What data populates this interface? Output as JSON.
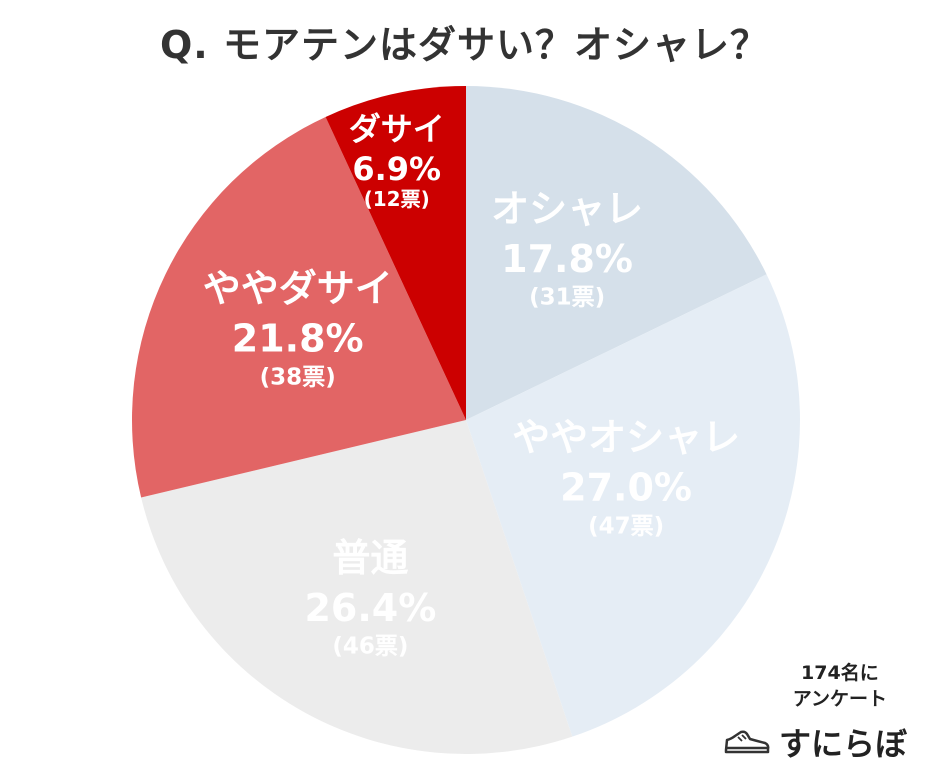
{
  "title": "Q. モアテンはダサい？オシャレ？",
  "respondents": {
    "line1": "174名に",
    "line2": "アンケート"
  },
  "brand": {
    "name": "すにらぼ",
    "icon": "sneaker-icon"
  },
  "chart_data": {
    "type": "pie",
    "title": "Q. モアテンはダサい？オシャレ？",
    "unit": "%",
    "start": "12 o'clock, clockwise",
    "slices": [
      {
        "label": "オシャレ",
        "value": 17.8,
        "votes_text": "(31票)",
        "color": "#d5e0ea",
        "text_color": "#ffffff"
      },
      {
        "label": "ややオシャレ",
        "value": 27.0,
        "votes_text": "(47票)",
        "color": "#e5edf5",
        "text_color": "#ffffff"
      },
      {
        "label": "普通",
        "value": 26.4,
        "votes_text": "(46票)",
        "color": "#ececec",
        "text_color": "#ffffff"
      },
      {
        "label": "ややダサイ",
        "value": 21.8,
        "votes_text": "(38票)",
        "color": "#e26565",
        "text_color": "#ffffff"
      },
      {
        "label": "ダサイ",
        "value": 6.9,
        "votes_text": "(12票)",
        "color": "#cc0000",
        "text_color": "#ffffff"
      }
    ]
  }
}
